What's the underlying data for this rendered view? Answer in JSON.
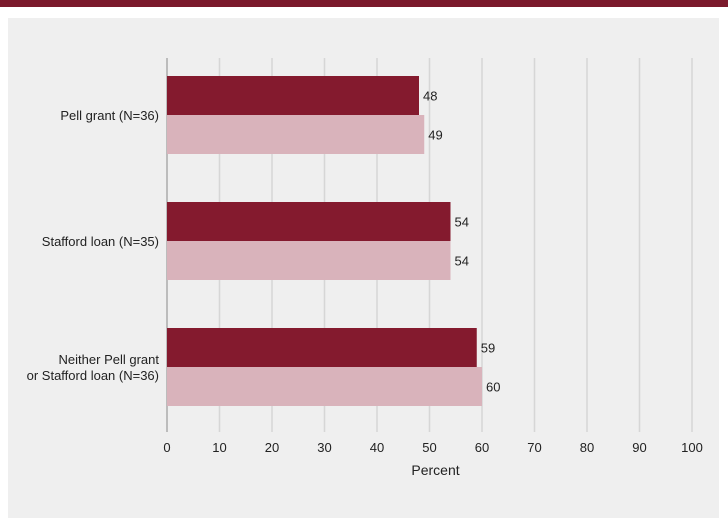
{
  "chart_data": {
    "type": "bar",
    "orientation": "horizontal",
    "categories": [
      "Pell grant  (N=36)",
      "Stafford loan (N=35)",
      "Neither Pell grant\nor Stafford loan (N=36)"
    ],
    "series": [
      {
        "values": [
          48,
          54,
          59
        ],
        "color": "#841a2e"
      },
      {
        "values": [
          49,
          54,
          60
        ],
        "color": "#d9b3bb"
      }
    ],
    "xlabel": "Percent",
    "xlim": [
      0,
      100
    ],
    "xticks": [
      "0",
      "10",
      "20",
      "30",
      "40",
      "50",
      "60",
      "70",
      "80",
      "90",
      "100"
    ],
    "grid": true
  }
}
